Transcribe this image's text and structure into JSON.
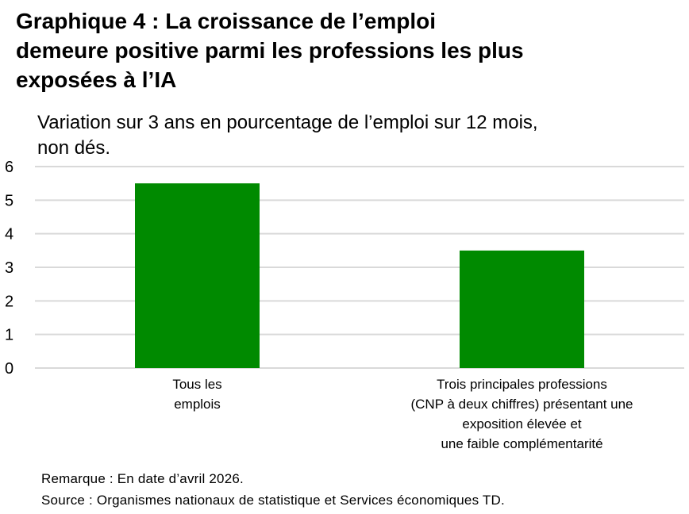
{
  "title_lines": [
    "Graphique 4 : La croissance de l’emploi",
    "demeure positive parmi les professions les plus",
    "exposées à l’IA"
  ],
  "subtitle_lines": [
    "Variation sur 3 ans en pourcentage de l’emploi sur 12 mois,",
    "non dés."
  ],
  "note": "Remarque : En date d’avril 2026.",
  "source": "Source : Organismes nationaux de statistique et Services économiques TD.",
  "colors": {
    "bar": "#008a00",
    "grid": "#d9d9d9"
  },
  "chart_data": {
    "type": "bar",
    "categories": [
      [
        "Tous les",
        "emplois"
      ],
      [
        "Trois principales professions",
        "(CNP à deux chiffres) présentant une",
        "exposition élevée et",
        "une faible complémentarité"
      ]
    ],
    "values": [
      5.5,
      3.5
    ],
    "ylim": [
      0,
      6
    ],
    "yticks": [
      "0",
      "1",
      "2",
      "3",
      "4",
      "5",
      "6"
    ],
    "grid": true,
    "legend": "none"
  }
}
